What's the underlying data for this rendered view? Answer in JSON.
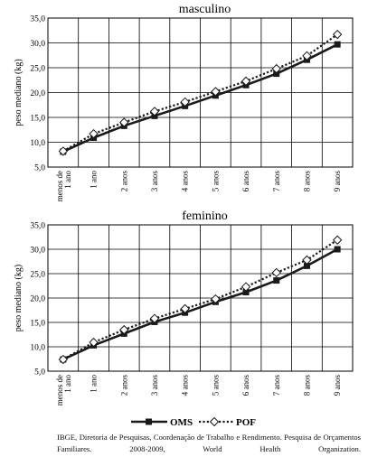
{
  "chart_data": [
    {
      "type": "line",
      "title": "masculino",
      "ylabel": "peso mediano (kg)",
      "categories": [
        "menos de 1 ano",
        "1 ano",
        "2 anos",
        "3 anos",
        "4 anos",
        "5 anos",
        "6 anos",
        "7 anos",
        "8 anos",
        "9 anos"
      ],
      "ylim": [
        5.0,
        35.0
      ],
      "yticks": [
        "5,0",
        "10,0",
        "15,0",
        "20,0",
        "25,0",
        "30,0",
        "35,0"
      ],
      "grid": true,
      "series": [
        {
          "name": "OMS",
          "color": "#1a1a1a",
          "marker": "square",
          "values": [
            8.1,
            10.9,
            13.3,
            15.3,
            17.3,
            19.4,
            21.5,
            23.8,
            26.6,
            29.7
          ]
        },
        {
          "name": "POF",
          "color": "#1a1a1a",
          "marker": "open-diamond",
          "dashed": true,
          "values": [
            8.2,
            11.7,
            14.0,
            16.2,
            18.1,
            20.2,
            22.3,
            24.8,
            27.4,
            31.7
          ]
        }
      ]
    },
    {
      "type": "line",
      "title": "feminino",
      "ylabel": "peso mediano (kg)",
      "categories": [
        "menos de 1 ano",
        "1 ano",
        "2 anos",
        "3 anos",
        "4 anos",
        "5 anos",
        "6 anos",
        "7 anos",
        "8 anos",
        "9 anos"
      ],
      "ylim": [
        5.0,
        35.0
      ],
      "yticks": [
        "5,0",
        "10,0",
        "15,0",
        "20,0",
        "25,0",
        "30,0",
        "35,0"
      ],
      "grid": true,
      "series": [
        {
          "name": "OMS",
          "color": "#1a1a1a",
          "marker": "square",
          "values": [
            7.4,
            10.3,
            12.7,
            15.1,
            17.0,
            19.2,
            21.2,
            23.6,
            26.6,
            30.0
          ]
        },
        {
          "name": "POF",
          "color": "#1a1a1a",
          "marker": "open-diamond",
          "dashed": true,
          "values": [
            7.4,
            10.9,
            13.5,
            15.8,
            17.8,
            19.8,
            22.3,
            25.2,
            27.8,
            31.9
          ]
        }
      ]
    }
  ],
  "legend": {
    "items": [
      "OMS",
      "POF"
    ],
    "position": "bottom"
  },
  "source_note": "IBGE, Diretoria de Pesquisas, Coordenação de Trabalho e Rendimento. Pesquisa de Orçamentos Familiares. 2008-2009, World Health Organization."
}
